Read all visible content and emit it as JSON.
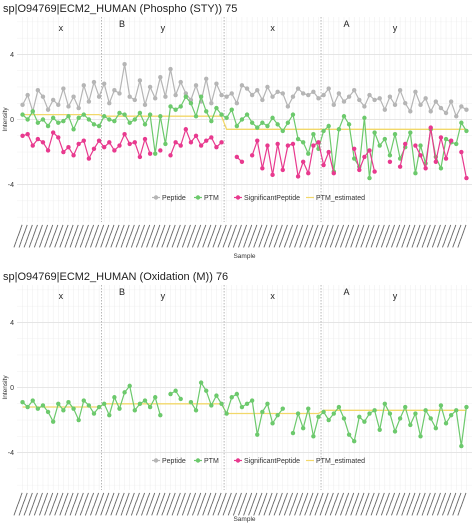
{
  "chart_data": [
    {
      "type": "line",
      "title": "sp|O94769|ECM2_HUMAN (Phospho (STY)) 75",
      "xlabel": "Sample",
      "ylabel": "Intensity",
      "ylim": [
        -6.3,
        6.3
      ],
      "yticks": [
        "4",
        "0",
        "-4"
      ],
      "ytick_values": [
        4,
        0,
        -4
      ],
      "groups": [
        {
          "label": "x",
          "level": 1,
          "start": 1,
          "end": 16
        },
        {
          "label": "B",
          "level": 0,
          "start": 1,
          "end": 40
        },
        {
          "label": "y",
          "level": 1,
          "start": 17,
          "end": 40
        },
        {
          "label": "x",
          "level": 1,
          "start": 41,
          "end": 59
        },
        {
          "label": "A",
          "level": 0,
          "start": 41,
          "end": 88
        },
        {
          "label": "y",
          "level": 1,
          "start": 60,
          "end": 88
        }
      ],
      "x_count": 88,
      "legend": {
        "position": "bottom",
        "entries": [
          "Peptide",
          "PTM",
          "SignificantPeptide",
          "PTM_estimated"
        ]
      },
      "colors": {
        "Peptide": "#b5b5b5",
        "PTM": "#6cc96c",
        "SignificantPeptide": "#e8398e",
        "PTM_estimated": "#f2d86a"
      },
      "series": [
        {
          "name": "Peptide",
          "values": [
            0.9,
            1.5,
            0.5,
            1.8,
            1.4,
            0.6,
            1.2,
            0.9,
            1.9,
            0.8,
            1.4,
            0.7,
            2.1,
            1.1,
            2.3,
            1.4,
            2.2,
            1.0,
            1.8,
            1.6,
            3.4,
            1.4,
            1.2,
            2.4,
            0.9,
            2.0,
            1.3,
            2.6,
            1.4,
            3.1,
            1.5,
            2.3,
            1.6,
            1.2,
            2.1,
            1.1,
            2.5,
            1.0,
            2.2,
            1.5,
            1.4,
            1.6,
            1.0,
            2.1,
            1.9,
            1.5,
            1.8,
            1.2,
            2.0,
            1.4,
            1.7,
            1.6,
            0.8,
            1.4,
            1.9,
            1.6,
            1.5,
            1.7,
            1.3,
            1.5,
            1.9,
            0.9,
            1.6,
            1.1,
            1.4,
            1.8,
            1.2,
            0.8,
            1.5,
            1.2,
            1.3,
            0.6,
            1.4,
            0.9,
            1.8,
            1.0,
            0.5,
            1.7,
            0.9,
            1.3,
            0.5,
            1.1,
            0.7,
            0.4,
            1.1,
            0.2,
            0.8,
            0.6
          ]
        },
        {
          "name": "PTM",
          "values": [
            0.3,
            0.0,
            0.5,
            -0.2,
            0.0,
            -0.4,
            0.1,
            -0.2,
            -0.1,
            0.2,
            -0.6,
            0.1,
            0.3,
            0.0,
            -0.3,
            -0.4,
            0.2,
            0.0,
            -0.1,
            0.4,
            0.3,
            -0.2,
            0.0,
            0.4,
            -0.3,
            0.3,
            -2.1,
            0.2,
            -1.5,
            0.8,
            0.6,
            0.8,
            1.4,
            1.0,
            0.2,
            1.4,
            0.5,
            -0.1,
            0.7,
            0.3,
            0.1,
            0.6,
            -0.4,
            0.0,
            0.3,
            -0.2,
            -0.5,
            -0.2,
            -0.4,
            0.1,
            -0.3,
            -0.7,
            -0.2,
            0.3,
            -1.2,
            -1.4,
            -2.1,
            -0.9,
            -1.8,
            -0.7,
            -0.4,
            -3.2,
            -0.6,
            0.2,
            -0.3,
            -2.4,
            -2.9,
            0.1,
            -3.6,
            -0.8,
            -1.6,
            -1.2,
            -2.2,
            -0.9,
            -2.4,
            -1.7,
            -0.8,
            -3.3,
            -1.6,
            -2.7,
            -0.6,
            -2.3,
            -3.0,
            -1.2,
            -1.4,
            -1.5,
            -0.2,
            -0.7
          ]
        },
        {
          "name": "SignificantPeptide",
          "values": [
            -1.0,
            -0.9,
            -1.6,
            -1.2,
            -1.4,
            -1.9,
            -0.8,
            -1.1,
            -2.0,
            -1.7,
            -2.2,
            -1.5,
            -1.3,
            -2.4,
            -1.8,
            -1.3,
            -1.7,
            -1.4,
            -1.9,
            -1.6,
            -0.9,
            -1.5,
            -1.4,
            -2.3,
            -1.2,
            -2.1,
            null,
            -1.9,
            null,
            -2.2,
            -1.4,
            -1.6,
            -0.6,
            -1.4,
            -1.0,
            -1.6,
            -1.3,
            -1.1,
            -1.7,
            -1.4,
            null,
            null,
            -2.3,
            -2.6,
            null,
            -2.2,
            -1.3,
            -3.0,
            -1.6,
            -3.4,
            -1.5,
            -3.1,
            -1.6,
            -1.5,
            -3.5,
            -2.6,
            -3.3,
            -1.6,
            -1.4,
            -2.8,
            -2.0,
            -3.3,
            null,
            null,
            null,
            -1.8,
            -3.1,
            -2.3,
            -1.9,
            -3.2,
            null,
            null,
            -2.6,
            null,
            -2.9,
            -1.5,
            null,
            -1.6,
            -2.2,
            -3.0,
            -0.5,
            -2.6,
            -1.1,
            -2.4,
            -1.3,
            null,
            -2.0,
            -3.6
          ]
        },
        {
          "name": "PTM_estimated",
          "values": [
            0.3,
            0.3,
            0.3,
            0.3,
            0.3,
            0.3,
            0.3,
            0.3,
            0.3,
            0.3,
            0.3,
            0.3,
            0.3,
            0.3,
            0.3,
            0.3,
            0.2,
            0.2,
            0.2,
            0.2,
            0.2,
            0.2,
            0.2,
            0.2,
            0.2,
            0.2,
            0.2,
            0.2,
            0.2,
            0.2,
            0.2,
            0.2,
            0.2,
            0.2,
            0.2,
            0.2,
            0.2,
            0.2,
            0.2,
            0.2,
            -0.6,
            -0.6,
            -0.6,
            -0.6,
            -0.6,
            -0.6,
            -0.6,
            -0.6,
            -0.6,
            -0.6,
            -0.6,
            -0.6,
            -0.6,
            -0.6,
            -0.6,
            -0.6,
            -0.6,
            -0.6,
            -0.6,
            -0.6,
            -0.6,
            -0.6,
            -0.6,
            -0.6,
            -0.6,
            -0.6,
            -0.6,
            -0.6,
            -0.6,
            -0.6,
            -0.6,
            -0.6,
            -0.6,
            -0.6,
            -0.6,
            -0.6,
            -0.6,
            -0.6,
            -0.6,
            -0.6,
            -0.6,
            -0.6,
            -0.6,
            -0.6,
            -0.6,
            -0.6,
            -0.6,
            -0.6
          ]
        }
      ]
    },
    {
      "type": "line",
      "title": "sp|O94769|ECM2_HUMAN (Oxidation (M)) 76",
      "xlabel": "Sample",
      "ylabel": "Intensity",
      "ylim": [
        -6.3,
        6.3
      ],
      "yticks": [
        "4",
        "0",
        "-4"
      ],
      "ytick_values": [
        4,
        0,
        -4
      ],
      "groups": [
        {
          "label": "x",
          "level": 1,
          "start": 1,
          "end": 16
        },
        {
          "label": "B",
          "level": 0,
          "start": 1,
          "end": 40
        },
        {
          "label": "y",
          "level": 1,
          "start": 17,
          "end": 40
        },
        {
          "label": "x",
          "level": 1,
          "start": 41,
          "end": 59
        },
        {
          "label": "A",
          "level": 0,
          "start": 41,
          "end": 88
        },
        {
          "label": "y",
          "level": 1,
          "start": 60,
          "end": 88
        }
      ],
      "x_count": 88,
      "legend": {
        "position": "bottom",
        "entries": [
          "Peptide",
          "PTM",
          "SignificantPeptide",
          "PTM_estimated"
        ]
      },
      "colors": {
        "Peptide": "#b5b5b5",
        "PTM": "#6cc96c",
        "SignificantPeptide": "#e8398e",
        "PTM_estimated": "#f2d86a"
      },
      "series": [
        {
          "name": "Peptide",
          "values": []
        },
        {
          "name": "PTM",
          "values": [
            -0.9,
            -1.2,
            -0.8,
            -1.3,
            -1.1,
            -1.5,
            -2.1,
            -1.0,
            -1.4,
            -0.9,
            -1.3,
            -2.0,
            -0.8,
            -1.1,
            -1.6,
            -1.2,
            -1.0,
            -1.7,
            -0.6,
            -1.3,
            -0.3,
            0.1,
            -1.4,
            -1.0,
            -0.8,
            -1.2,
            -0.6,
            -1.7,
            null,
            -0.4,
            -0.2,
            -0.7,
            null,
            -0.9,
            -1.4,
            0.3,
            -0.2,
            -1.1,
            -0.5,
            -1.0,
            -1.6,
            -0.6,
            -0.4,
            -1.2,
            -1.0,
            -0.8,
            -2.9,
            -1.5,
            -1.0,
            -2.2,
            -1.7,
            -1.3,
            null,
            -2.8,
            -1.6,
            -2.5,
            -1.3,
            -3.0,
            -1.8,
            -1.5,
            -2.0,
            -1.6,
            -1.2,
            -1.9,
            -2.9,
            -3.3,
            -1.8,
            -2.1,
            -1.6,
            -1.4,
            -2.6,
            -1.0,
            -1.6,
            -2.7,
            -1.9,
            -1.2,
            -2.3,
            -1.6,
            -3.0,
            -1.4,
            -1.9,
            -2.5,
            -1.1,
            -2.2,
            -1.7,
            -1.4,
            -3.6,
            -1.2
          ]
        },
        {
          "name": "SignificantPeptide",
          "values": []
        },
        {
          "name": "PTM_estimated",
          "values": [
            -1.2,
            -1.2,
            -1.2,
            -1.2,
            -1.2,
            -1.2,
            -1.2,
            -1.2,
            -1.2,
            -1.2,
            -1.2,
            -1.2,
            -1.2,
            -1.2,
            -1.2,
            -1.2,
            -1.0,
            -1.0,
            -1.0,
            -1.0,
            -1.0,
            -1.0,
            -1.0,
            -1.0,
            -1.0,
            -1.0,
            -1.0,
            -1.0,
            -1.0,
            -1.0,
            -1.0,
            -1.0,
            -1.0,
            -1.0,
            -1.0,
            -1.0,
            -1.0,
            -1.0,
            -1.0,
            -1.0,
            -1.6,
            -1.6,
            -1.6,
            -1.6,
            -1.6,
            -1.6,
            -1.6,
            -1.6,
            -1.6,
            -1.6,
            -1.6,
            -1.6,
            -1.6,
            -1.6,
            -1.6,
            -1.6,
            -1.6,
            -1.6,
            -1.6,
            -1.4,
            -1.4,
            -1.4,
            -1.4,
            -1.4,
            -1.4,
            -1.4,
            -1.4,
            -1.4,
            -1.4,
            -1.4,
            -1.4,
            -1.4,
            -1.4,
            -1.4,
            -1.4,
            -1.4,
            -1.4,
            -1.4,
            -1.4,
            -1.4,
            -1.4,
            -1.4,
            -1.4,
            -1.4,
            -1.4,
            -1.4,
            -1.4,
            -1.4
          ]
        }
      ]
    }
  ]
}
